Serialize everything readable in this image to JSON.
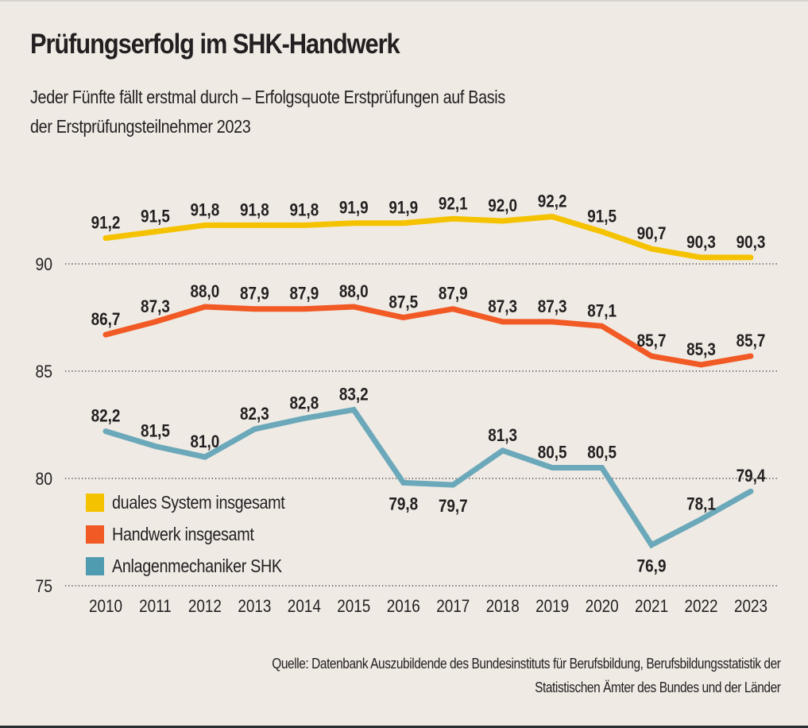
{
  "title": "Prüfungserfolg im SHK-Handwerk",
  "subtitle_lines": [
    "Jeder Fünfte fällt erstmal durch – Erfolgsquote Erstprüfungen auf Basis",
    "der Erstprüfungsteilnehmer 2023"
  ],
  "source_lines": [
    "Quelle: Datenbank Auszubildende des Bundesinstituts für Berufsbildung, Berufsbildungsstatistik der",
    "Statistischen Ämter des Bundes und der Länder"
  ],
  "chart_data": {
    "type": "line",
    "title": "Prüfungserfolg im SHK-Handwerk",
    "xlabel": "",
    "ylabel": "",
    "x": [
      "2010",
      "2011",
      "2012",
      "2013",
      "2014",
      "2015",
      "2016",
      "2017",
      "2018",
      "2019",
      "2020",
      "2021",
      "2022",
      "2023"
    ],
    "ylim": [
      75,
      92.5
    ],
    "yticks": [
      75,
      80,
      85,
      90
    ],
    "grid": "horizontal-dotted",
    "legend_position": "bottom-left",
    "decimal_separator": ",",
    "series": [
      {
        "name": "duales System insgesamt",
        "color": "#f5c200",
        "values": [
          91.2,
          91.5,
          91.8,
          91.8,
          91.8,
          91.9,
          91.9,
          92.1,
          92.0,
          92.2,
          91.5,
          90.7,
          90.3,
          90.3
        ],
        "labels": [
          "91,2",
          "91,5",
          "91,8",
          "91,8",
          "91,8",
          "91,9",
          "91,9",
          "92,1",
          "92,0",
          "92,2",
          "91,5",
          "90,7",
          "90,3",
          "90,3"
        ]
      },
      {
        "name": "Handwerk insgesamt",
        "color": "#f15a24",
        "values": [
          86.7,
          87.3,
          88.0,
          87.9,
          87.9,
          88.0,
          87.5,
          87.9,
          87.3,
          87.3,
          87.1,
          85.7,
          85.3,
          85.7
        ],
        "labels": [
          "86,7",
          "87,3",
          "88,0",
          "87,9",
          "87,9",
          "88,0",
          "87,5",
          "87,9",
          "87,3",
          "87,3",
          "87,1",
          "85,7",
          "85,3",
          "85,7"
        ]
      },
      {
        "name": "Anlagenmechaniker SHK",
        "color": "#6aa8ba",
        "legend_color": "#4f9bb0",
        "values": [
          82.2,
          81.5,
          81.0,
          82.3,
          82.8,
          83.2,
          79.8,
          79.7,
          81.3,
          80.5,
          80.5,
          76.9,
          78.1,
          79.4
        ],
        "labels": [
          "82,2",
          "81,5",
          "81,0",
          "82,3",
          "82,8",
          "83,2",
          "79,8",
          "79,7",
          "81,3",
          "80,5",
          "80,5",
          "76,9",
          "78,1",
          "79,4"
        ],
        "label_placement": [
          "above",
          "above",
          "above",
          "above",
          "above",
          "above",
          "below",
          "below",
          "above",
          "above",
          "above",
          "below",
          "above",
          "above"
        ]
      }
    ]
  }
}
